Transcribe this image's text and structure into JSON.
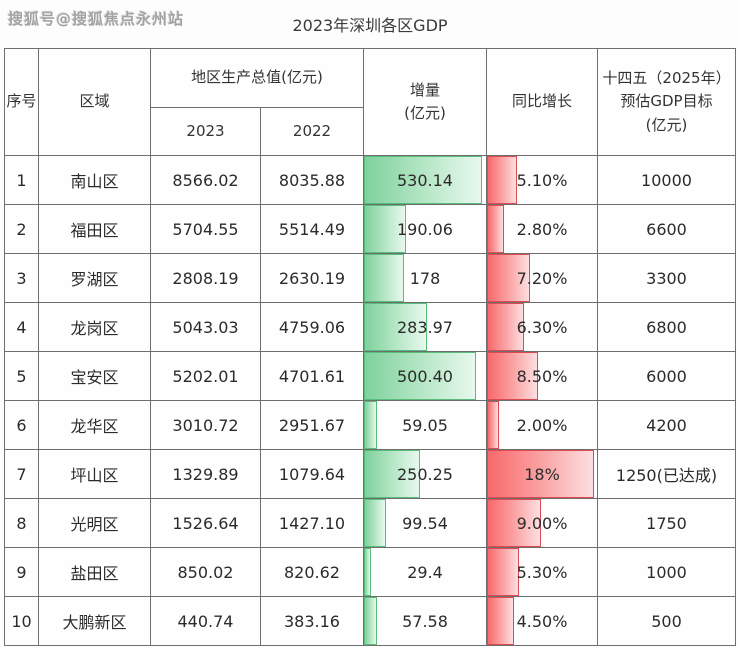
{
  "watermark": "搜狐号@搜狐焦点永州站",
  "title": "2023年深圳各区GDP",
  "colors": {
    "green_bar_border": "#5abc7b",
    "green_bar_fill_start": "#7fd19d",
    "green_bar_fill_end": "#e8f8ee",
    "red_bar_border": "#dd4b52",
    "red_bar_fill_start": "#f8696b",
    "red_bar_fill_end": "#fcdfe0",
    "grid_line": "#6e6e6e",
    "text": "#2b2b2b",
    "watermark_text": "#a3a3a3"
  },
  "table": {
    "headers": {
      "index": "序号",
      "region": "区域",
      "gdp_group": "地区生产总值(亿元)",
      "gdp_2023": "2023",
      "gdp_2022": "2022",
      "increment_line1": "增量",
      "increment_line2": "(亿元)",
      "growth": "同比增长",
      "target_line1": "十四五（2025年）",
      "target_line2": "预估GDP目标",
      "target_line3": "(亿元)"
    },
    "bar_scale": {
      "increment_max": 546,
      "growth_max": 18.5
    },
    "rows": [
      {
        "index": "1",
        "region": "南山区",
        "gdp_2023": "8566.02",
        "gdp_2022": "8035.88",
        "increment": "530.14",
        "increment_value": 530.14,
        "growth": "5.10%",
        "growth_value": 5.1,
        "target": "10000"
      },
      {
        "index": "2",
        "region": "福田区",
        "gdp_2023": "5704.55",
        "gdp_2022": "5514.49",
        "increment": "190.06",
        "increment_value": 190.06,
        "growth": "2.80%",
        "growth_value": 2.8,
        "target": "6600"
      },
      {
        "index": "3",
        "region": "罗湖区",
        "gdp_2023": "2808.19",
        "gdp_2022": "2630.19",
        "increment": "178",
        "increment_value": 178,
        "growth": "7.20%",
        "growth_value": 7.2,
        "target": "3300"
      },
      {
        "index": "4",
        "region": "龙岗区",
        "gdp_2023": "5043.03",
        "gdp_2022": "4759.06",
        "increment": "283.97",
        "increment_value": 283.97,
        "growth": "6.30%",
        "growth_value": 6.3,
        "target": "6800"
      },
      {
        "index": "5",
        "region": "宝安区",
        "gdp_2023": "5202.01",
        "gdp_2022": "4701.61",
        "increment": "500.40",
        "increment_value": 500.4,
        "growth": "8.50%",
        "growth_value": 8.5,
        "target": "6000"
      },
      {
        "index": "6",
        "region": "龙华区",
        "gdp_2023": "3010.72",
        "gdp_2022": "2951.67",
        "increment": "59.05",
        "increment_value": 59.05,
        "growth": "2.00%",
        "growth_value": 2.0,
        "target": "4200"
      },
      {
        "index": "7",
        "region": "坪山区",
        "gdp_2023": "1329.89",
        "gdp_2022": "1079.64",
        "increment": "250.25",
        "increment_value": 250.25,
        "growth": "18%",
        "growth_value": 18,
        "target": "1250(已达成)"
      },
      {
        "index": "8",
        "region": "光明区",
        "gdp_2023": "1526.64",
        "gdp_2022": "1427.10",
        "increment": "99.54",
        "increment_value": 99.54,
        "growth": "9.00%",
        "growth_value": 9.0,
        "target": "1750"
      },
      {
        "index": "9",
        "region": "盐田区",
        "gdp_2023": "850.02",
        "gdp_2022": "820.62",
        "increment": "29.4",
        "increment_value": 29.4,
        "growth": "5.30%",
        "growth_value": 5.3,
        "target": "1000"
      },
      {
        "index": "10",
        "region": "大鹏新区",
        "gdp_2023": "440.74",
        "gdp_2022": "383.16",
        "increment": "57.58",
        "increment_value": 57.58,
        "growth": "4.50%",
        "growth_value": 4.5,
        "target": "500"
      }
    ]
  },
  "chart_data": {
    "type": "table",
    "title": "2023年深圳各区GDP",
    "columns": [
      "序号",
      "区域",
      "地区生产总值(亿元) 2023",
      "地区生产总值(亿元) 2022",
      "增量(亿元)",
      "同比增长",
      "十四五（2025年）预估GDP目标(亿元)"
    ],
    "rows": [
      [
        1,
        "南山区",
        8566.02,
        8035.88,
        530.14,
        "5.10%",
        "10000"
      ],
      [
        2,
        "福田区",
        5704.55,
        5514.49,
        190.06,
        "2.80%",
        "6600"
      ],
      [
        3,
        "罗湖区",
        2808.19,
        2630.19,
        178,
        "7.20%",
        "3300"
      ],
      [
        4,
        "龙岗区",
        5043.03,
        4759.06,
        283.97,
        "6.30%",
        "6800"
      ],
      [
        5,
        "宝安区",
        5202.01,
        4701.61,
        500.4,
        "8.50%",
        "6000"
      ],
      [
        6,
        "龙华区",
        3010.72,
        2951.67,
        59.05,
        "2.00%",
        "4200"
      ],
      [
        7,
        "坪山区",
        1329.89,
        1079.64,
        250.25,
        "18%",
        "1250(已达成)"
      ],
      [
        8,
        "光明区",
        1526.64,
        1427.1,
        99.54,
        "9.00%",
        "1750"
      ],
      [
        9,
        "盐田区",
        850.02,
        820.62,
        29.4,
        "5.30%",
        "1000"
      ],
      [
        10,
        "大鹏新区",
        440.74,
        383.16,
        57.58,
        "4.50%",
        "500"
      ]
    ],
    "notes": "增量 column shows green data bars proportional to value (max ≈ 530.14); 同比增长 column shows red data bars proportional to percent (max = 18%)."
  }
}
